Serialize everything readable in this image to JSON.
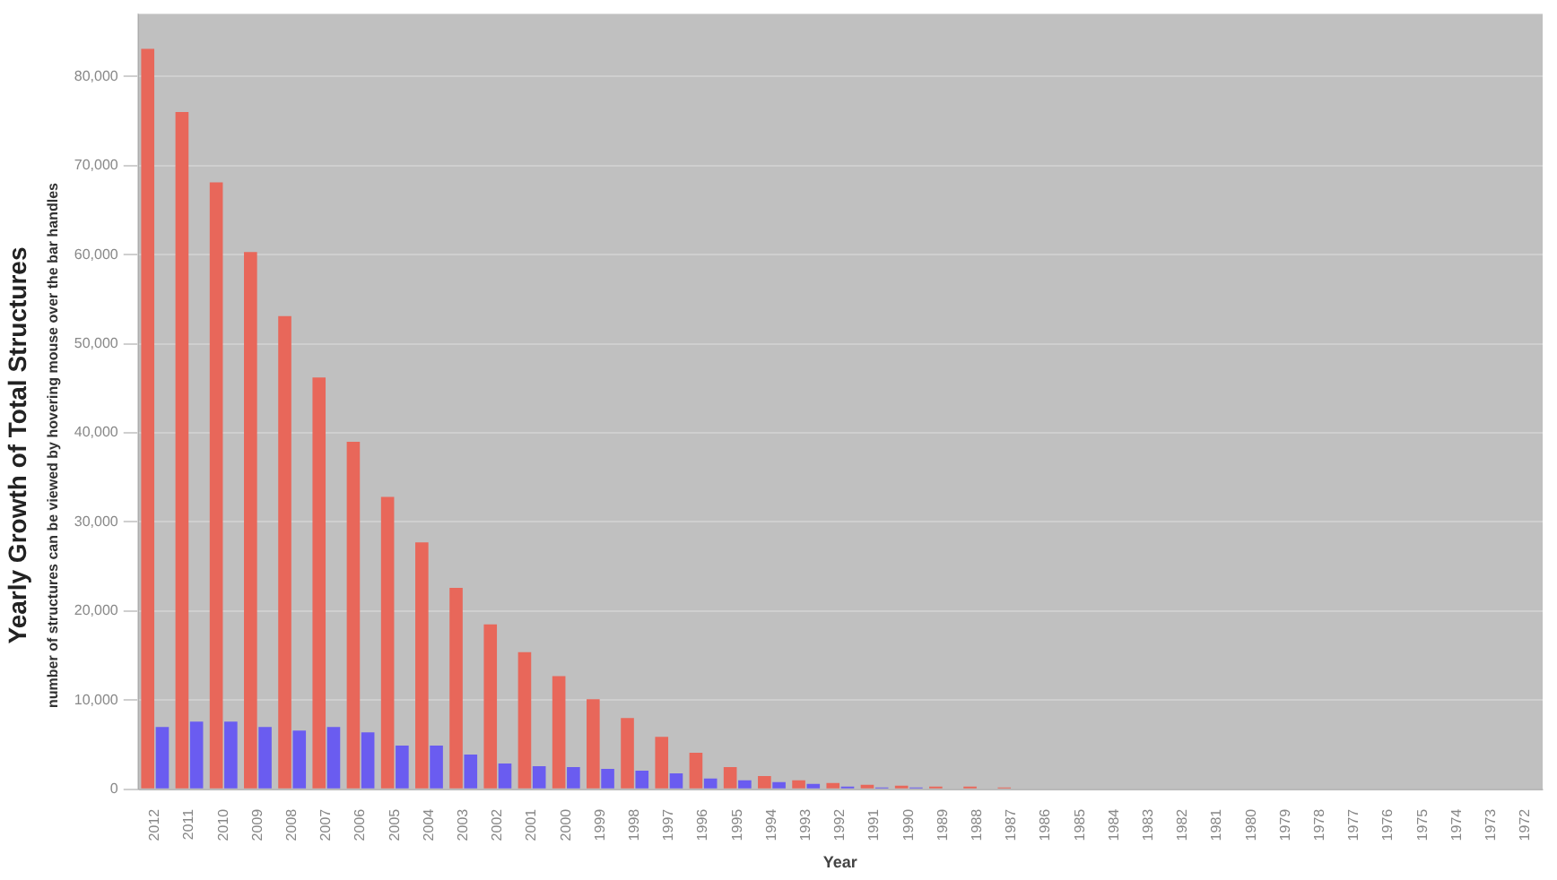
{
  "chart_data": {
    "type": "bar",
    "title": "Yearly Growth of Total Structures",
    "subtitle": "number of structures can be viewed by hovering mouse over the bar handles",
    "xlabel": "Year",
    "categories": [
      "2012",
      "2011",
      "2010",
      "2009",
      "2008",
      "2007",
      "2006",
      "2005",
      "2004",
      "2003",
      "2002",
      "2001",
      "2000",
      "1999",
      "1998",
      "1997",
      "1996",
      "1995",
      "1994",
      "1993",
      "1992",
      "1991",
      "1990",
      "1989",
      "1988",
      "1987",
      "1986",
      "1985",
      "1984",
      "1983",
      "1982",
      "1981",
      "1980",
      "1979",
      "1978",
      "1977",
      "1976",
      "1975",
      "1974",
      "1973",
      "1972"
    ],
    "series": [
      {
        "color": "#e8675a",
        "values": [
          83100,
          76000,
          68100,
          60300,
          53100,
          46200,
          39000,
          32800,
          27700,
          22600,
          18500,
          15400,
          12700,
          10100,
          8000,
          5900,
          4100,
          2500,
          1500,
          1000,
          700,
          500,
          400,
          300,
          300,
          200,
          100,
          100,
          100,
          100,
          100,
          100,
          100,
          100,
          100,
          100,
          100,
          null,
          null,
          null,
          null
        ]
      },
      {
        "color": "#6a5cf0",
        "values": [
          7000,
          7600,
          7600,
          7000,
          6600,
          7000,
          6400,
          4900,
          4900,
          3900,
          2900,
          2600,
          2500,
          2300,
          2100,
          1800,
          1200,
          1000,
          800,
          600,
          300,
          200,
          200,
          100,
          100,
          100,
          100,
          100,
          100,
          100,
          100,
          100,
          100,
          100,
          100,
          100,
          100,
          null,
          null,
          null,
          null
        ]
      }
    ],
    "ylim": [
      0,
      87000
    ],
    "yticks": [
      0,
      {
        "value": 10000,
        "label": "10,000"
      },
      {
        "value": 20000,
        "label": "20,000"
      },
      {
        "value": 30000,
        "label": "30,000"
      },
      {
        "value": 40000,
        "label": "40,000"
      },
      {
        "value": 50000,
        "label": "50,000"
      },
      {
        "value": 60000,
        "label": "60,000"
      },
      {
        "value": 70000,
        "label": "70,000"
      },
      {
        "value": 80000,
        "label": "80,000"
      }
    ],
    "grid": "y"
  }
}
